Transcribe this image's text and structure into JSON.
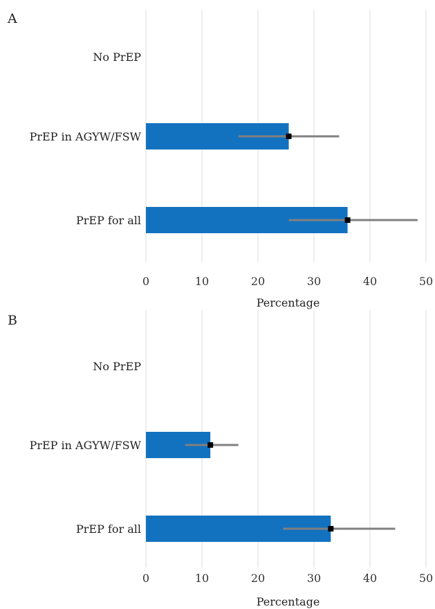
{
  "chart_data": [
    {
      "type": "bar",
      "orientation": "horizontal",
      "panel": "A",
      "categories": [
        "No PrEP",
        "PrEP in AGYW/FSW",
        "PrEP for all"
      ],
      "values": [
        0,
        25.5,
        36
      ],
      "error_low": [
        null,
        16.5,
        25.5
      ],
      "error_high": [
        null,
        34.5,
        48.5
      ],
      "xlabel": "Percentage",
      "xlim": [
        0,
        50
      ],
      "xticks": [
        0,
        10,
        20,
        30,
        40,
        50
      ],
      "grid": "vertical",
      "bar_color": "#1372bf",
      "error_color": "#808080",
      "point_color": "#000000"
    },
    {
      "type": "bar",
      "orientation": "horizontal",
      "panel": "B",
      "categories": [
        "No PrEP",
        "PrEP in AGYW/FSW",
        "PrEP for all"
      ],
      "values": [
        0,
        11.5,
        33
      ],
      "error_low": [
        null,
        7,
        24.5
      ],
      "error_high": [
        null,
        16.5,
        44.5
      ],
      "xlabel": "Percentage",
      "xlim": [
        0,
        50
      ],
      "xticks": [
        0,
        10,
        20,
        30,
        40,
        50
      ],
      "grid": "vertical",
      "bar_color": "#1372bf",
      "error_color": "#808080",
      "point_color": "#000000"
    }
  ]
}
